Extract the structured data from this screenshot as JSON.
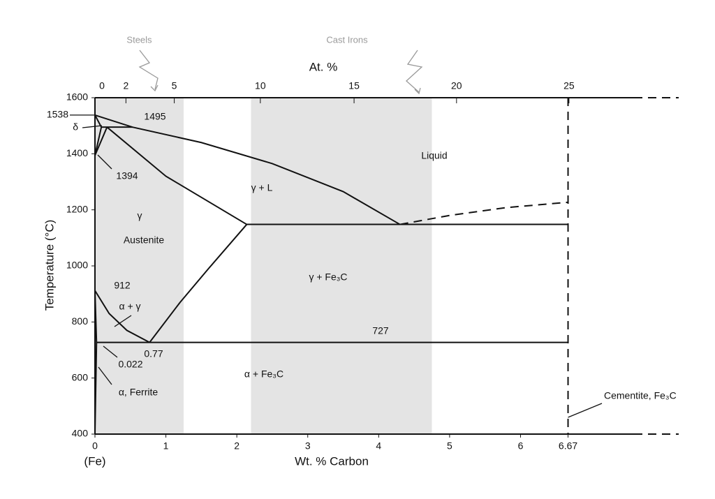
{
  "chart_data": {
    "type": "phase-diagram",
    "x_label": "Wt. % Carbon",
    "x_sublabel": "(Fe)",
    "y_label": "Temperature (°C)",
    "x2_label": "At. %",
    "xlim": [
      0,
      7.6
    ],
    "ylim": [
      400,
      1600
    ],
    "xticks": [
      0,
      1,
      2,
      3,
      4,
      5,
      6,
      6.67
    ],
    "yticks": [
      400,
      600,
      800,
      1000,
      1200,
      1400,
      1600
    ],
    "x2ticks": [
      0,
      2,
      5,
      10,
      15,
      20,
      25
    ],
    "color": "#111111",
    "region_color": "#e4e4e4",
    "region_label_color": "#9a9a9a",
    "regions": [
      {
        "label": "Steels",
        "range": [
          0,
          1.25
        ]
      },
      {
        "label": "Cast Irons",
        "range": [
          2.2,
          4.75
        ]
      }
    ],
    "series": [
      {
        "x": [
          0,
          0.53,
          1.5,
          2.5,
          3.5,
          4.3
        ],
        "values": [
          1538,
          1495,
          1440,
          1365,
          1265,
          1148
        ]
      },
      {
        "x": [
          4.3,
          5,
          5.8,
          6.67
        ],
        "values": [
          1148,
          1180,
          1208,
          1227
        ],
        "style": "dashed"
      },
      {
        "x": [
          0,
          0.09,
          0
        ],
        "values": [
          1538,
          1495,
          1394
        ]
      },
      {
        "x": [
          0.09,
          0.53
        ],
        "values": [
          1495,
          1495
        ]
      },
      {
        "x": [
          0.17,
          1,
          2.14
        ],
        "values": [
          1495,
          1320,
          1148
        ]
      },
      {
        "x": [
          0,
          0.17
        ],
        "values": [
          1394,
          1495
        ]
      },
      {
        "x": [
          2.14,
          6.67
        ],
        "values": [
          1148,
          1148
        ]
      },
      {
        "x": [
          0.77,
          1.2,
          1.6,
          2.14
        ],
        "values": [
          727,
          870,
          990,
          1148
        ]
      },
      {
        "x": [
          0,
          0.2,
          0.45,
          0.77
        ],
        "values": [
          912,
          830,
          770,
          727
        ]
      },
      {
        "x": [
          0.022,
          6.67
        ],
        "values": [
          727,
          727
        ]
      },
      {
        "x": [
          0,
          0.022,
          0
        ],
        "values": [
          912,
          727,
          400
        ]
      },
      {
        "x": [
          6.67,
          6.67
        ],
        "values": [
          1600,
          400
        ],
        "style": "dashed"
      }
    ],
    "annotations": [
      "1538",
      "δ",
      "1495",
      "1394",
      "γ",
      "Austenite",
      "912",
      "α + γ",
      "0.77",
      "0.022",
      "α, Ferrite",
      "γ + L",
      "Liquid",
      "γ + Fe₃C",
      "727",
      "α + Fe₃C",
      "Cementite, Fe₃C"
    ]
  }
}
